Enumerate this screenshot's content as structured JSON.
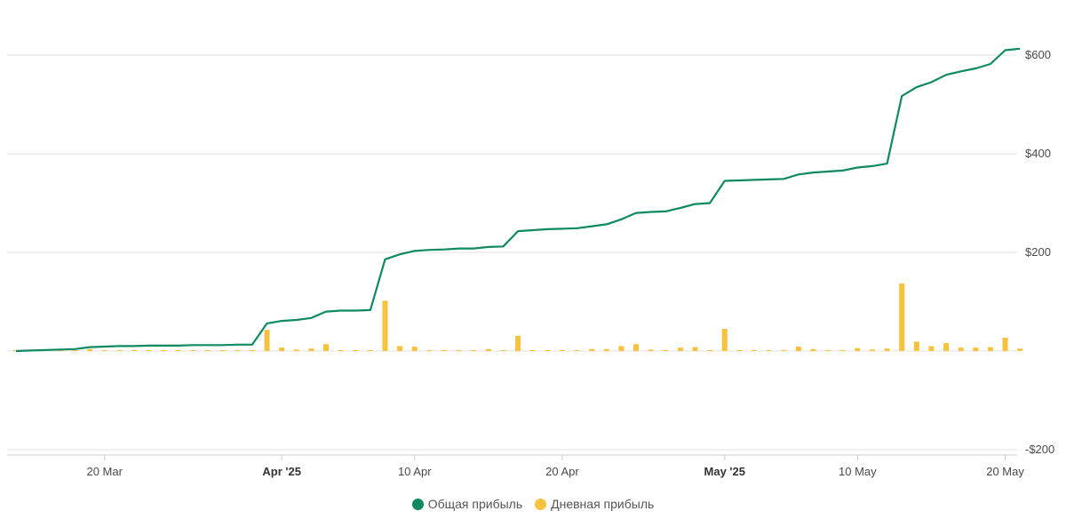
{
  "chart_data": {
    "type": "bar+line",
    "x_axis": {
      "ticks": [
        {
          "date": "2025-03-20",
          "label": "20 Mar",
          "bold": false
        },
        {
          "date": "2025-04-01",
          "label": "Apr '25",
          "bold": true
        },
        {
          "date": "2025-04-10",
          "label": "10 Apr",
          "bold": false
        },
        {
          "date": "2025-04-20",
          "label": "20 Apr",
          "bold": false
        },
        {
          "date": "2025-05-01",
          "label": "May '25",
          "bold": true
        },
        {
          "date": "2025-05-10",
          "label": "10 May",
          "bold": false
        },
        {
          "date": "2025-05-20",
          "label": "20 May",
          "bold": false
        }
      ]
    },
    "y_axis": {
      "position": "right",
      "min": -200,
      "max": 600,
      "ticks": [
        {
          "value": 600,
          "label": "$600"
        },
        {
          "value": 400,
          "label": "$400"
        },
        {
          "value": 200,
          "label": "$200"
        },
        {
          "value": -200,
          "label": "-$200"
        }
      ],
      "grid": true
    },
    "series": [
      {
        "name": "Общая прибыль",
        "type": "line",
        "color": "#0e8a5f",
        "points": [
          [
            "2025-03-14",
            0
          ],
          [
            "2025-03-15",
            1
          ],
          [
            "2025-03-16",
            2
          ],
          [
            "2025-03-17",
            3
          ],
          [
            "2025-03-18",
            4
          ],
          [
            "2025-03-19",
            8
          ],
          [
            "2025-03-20",
            9
          ],
          [
            "2025-03-21",
            10
          ],
          [
            "2025-03-22",
            10
          ],
          [
            "2025-03-23",
            11
          ],
          [
            "2025-03-24",
            11
          ],
          [
            "2025-03-25",
            11
          ],
          [
            "2025-03-26",
            12
          ],
          [
            "2025-03-27",
            12
          ],
          [
            "2025-03-28",
            12
          ],
          [
            "2025-03-29",
            13
          ],
          [
            "2025-03-30",
            13
          ],
          [
            "2025-03-31",
            56
          ],
          [
            "2025-04-01",
            61
          ],
          [
            "2025-04-02",
            63
          ],
          [
            "2025-04-03",
            67
          ],
          [
            "2025-04-04",
            80
          ],
          [
            "2025-04-05",
            82
          ],
          [
            "2025-04-06",
            82
          ],
          [
            "2025-04-07",
            83
          ],
          [
            "2025-04-08",
            186
          ],
          [
            "2025-04-09",
            196
          ],
          [
            "2025-04-10",
            203
          ],
          [
            "2025-04-11",
            205
          ],
          [
            "2025-04-12",
            206
          ],
          [
            "2025-04-13",
            208
          ],
          [
            "2025-04-14",
            208
          ],
          [
            "2025-04-15",
            211
          ],
          [
            "2025-04-16",
            212
          ],
          [
            "2025-04-17",
            243
          ],
          [
            "2025-04-18",
            245
          ],
          [
            "2025-04-19",
            247
          ],
          [
            "2025-04-20",
            248
          ],
          [
            "2025-04-21",
            249
          ],
          [
            "2025-04-22",
            253
          ],
          [
            "2025-04-23",
            257
          ],
          [
            "2025-04-24",
            267
          ],
          [
            "2025-04-25",
            280
          ],
          [
            "2025-04-26",
            282
          ],
          [
            "2025-04-27",
            283
          ],
          [
            "2025-04-28",
            290
          ],
          [
            "2025-04-29",
            298
          ],
          [
            "2025-04-30",
            300
          ],
          [
            "2025-05-01",
            345
          ],
          [
            "2025-05-02",
            346
          ],
          [
            "2025-05-03",
            347
          ],
          [
            "2025-05-04",
            348
          ],
          [
            "2025-05-05",
            349
          ],
          [
            "2025-05-06",
            358
          ],
          [
            "2025-05-07",
            362
          ],
          [
            "2025-05-08",
            364
          ],
          [
            "2025-05-09",
            366
          ],
          [
            "2025-05-10",
            372
          ],
          [
            "2025-05-11",
            375
          ],
          [
            "2025-05-12",
            380
          ],
          [
            "2025-05-13",
            517
          ],
          [
            "2025-05-14",
            535
          ],
          [
            "2025-05-15",
            545
          ],
          [
            "2025-05-16",
            560
          ],
          [
            "2025-05-17",
            567
          ],
          [
            "2025-05-18",
            573
          ],
          [
            "2025-05-19",
            582
          ],
          [
            "2025-05-20",
            610
          ],
          [
            "2025-05-21",
            613
          ]
        ]
      },
      {
        "name": "Дневная прибыль",
        "type": "bar",
        "color": "#f7c23e",
        "points": [
          [
            "2025-03-14",
            0
          ],
          [
            "2025-03-15",
            1
          ],
          [
            "2025-03-16",
            1
          ],
          [
            "2025-03-17",
            1
          ],
          [
            "2025-03-18",
            1
          ],
          [
            "2025-03-19",
            4
          ],
          [
            "2025-03-20",
            1
          ],
          [
            "2025-03-21",
            1
          ],
          [
            "2025-03-22",
            1
          ],
          [
            "2025-03-23",
            1
          ],
          [
            "2025-03-24",
            1
          ],
          [
            "2025-03-25",
            1
          ],
          [
            "2025-03-26",
            1
          ],
          [
            "2025-03-27",
            1
          ],
          [
            "2025-03-28",
            1
          ],
          [
            "2025-03-29",
            1
          ],
          [
            "2025-03-30",
            1
          ],
          [
            "2025-03-31",
            43
          ],
          [
            "2025-04-01",
            7
          ],
          [
            "2025-04-02",
            3
          ],
          [
            "2025-04-03",
            5
          ],
          [
            "2025-04-04",
            14
          ],
          [
            "2025-04-05",
            2
          ],
          [
            "2025-04-06",
            1
          ],
          [
            "2025-04-07",
            1
          ],
          [
            "2025-04-08",
            102
          ],
          [
            "2025-04-09",
            10
          ],
          [
            "2025-04-10",
            9
          ],
          [
            "2025-04-11",
            2
          ],
          [
            "2025-04-12",
            1
          ],
          [
            "2025-04-13",
            2
          ],
          [
            "2025-04-14",
            1
          ],
          [
            "2025-04-15",
            4
          ],
          [
            "2025-04-16",
            1
          ],
          [
            "2025-04-17",
            31
          ],
          [
            "2025-04-18",
            2
          ],
          [
            "2025-04-19",
            2
          ],
          [
            "2025-04-20",
            1
          ],
          [
            "2025-04-21",
            1
          ],
          [
            "2025-04-22",
            4
          ],
          [
            "2025-04-23",
            4
          ],
          [
            "2025-04-24",
            10
          ],
          [
            "2025-04-25",
            14
          ],
          [
            "2025-04-26",
            3
          ],
          [
            "2025-04-27",
            1
          ],
          [
            "2025-04-28",
            7
          ],
          [
            "2025-04-29",
            8
          ],
          [
            "2025-04-30",
            2
          ],
          [
            "2025-05-01",
            45
          ],
          [
            "2025-05-02",
            1
          ],
          [
            "2025-05-03",
            1
          ],
          [
            "2025-05-04",
            1
          ],
          [
            "2025-05-05",
            2
          ],
          [
            "2025-05-06",
            9
          ],
          [
            "2025-05-07",
            4
          ],
          [
            "2025-05-08",
            2
          ],
          [
            "2025-05-09",
            2
          ],
          [
            "2025-05-10",
            6
          ],
          [
            "2025-05-11",
            3
          ],
          [
            "2025-05-12",
            5
          ],
          [
            "2025-05-13",
            137
          ],
          [
            "2025-05-14",
            19
          ],
          [
            "2025-05-15",
            10
          ],
          [
            "2025-05-16",
            16
          ],
          [
            "2025-05-17",
            7
          ],
          [
            "2025-05-18",
            7
          ],
          [
            "2025-05-19",
            8
          ],
          [
            "2025-05-20",
            27
          ],
          [
            "2025-05-21",
            5
          ]
        ]
      }
    ],
    "legend": {
      "placement": "bottom-center",
      "items": [
        {
          "label": "Общая прибыль",
          "color": "#0e8a5f"
        },
        {
          "label": "Дневная прибыль",
          "color": "#f7c23e"
        }
      ]
    }
  }
}
